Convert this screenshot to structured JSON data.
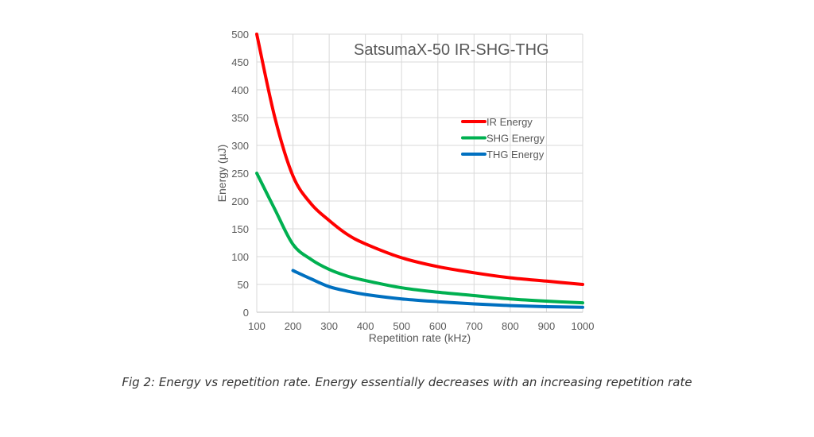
{
  "chart_data": {
    "type": "line",
    "title": "SatsumaX-50 IR-SHG-THG",
    "xlabel": "Repetition rate (kHz)",
    "ylabel": "Energy (µJ)",
    "xlim": [
      100,
      1000
    ],
    "ylim": [
      0,
      500
    ],
    "xticks": [
      100,
      200,
      300,
      400,
      500,
      600,
      700,
      800,
      900,
      1000
    ],
    "yticks": [
      0,
      50,
      100,
      150,
      200,
      250,
      300,
      350,
      400,
      450,
      500
    ],
    "grid": true,
    "legend_position": "upper-right",
    "series": [
      {
        "name": "IR Energy",
        "color": "#ff0000",
        "x": [
          100,
          150,
          200,
          250,
          300,
          350,
          400,
          500,
          600,
          700,
          800,
          900,
          1000
        ],
        "values": [
          500,
          350,
          245,
          195,
          165,
          140,
          123,
          98,
          82,
          71,
          62,
          56,
          50
        ]
      },
      {
        "name": "SHG Energy",
        "color": "#00b050",
        "x": [
          100,
          150,
          200,
          250,
          300,
          350,
          400,
          500,
          600,
          700,
          800,
          900,
          1000
        ],
        "values": [
          250,
          185,
          122,
          95,
          77,
          65,
          57,
          44,
          36,
          30,
          24,
          20,
          17
        ]
      },
      {
        "name": "THG Energy",
        "color": "#0070c0",
        "x": [
          200,
          250,
          300,
          350,
          400,
          500,
          600,
          700,
          800,
          900,
          1000
        ],
        "values": [
          75,
          60,
          46,
          38,
          32,
          24,
          19,
          15,
          12,
          10,
          9
        ]
      }
    ]
  },
  "caption": "Fig 2: Energy vs repetition rate. Energy essentially decreases with an increasing repetition rate"
}
